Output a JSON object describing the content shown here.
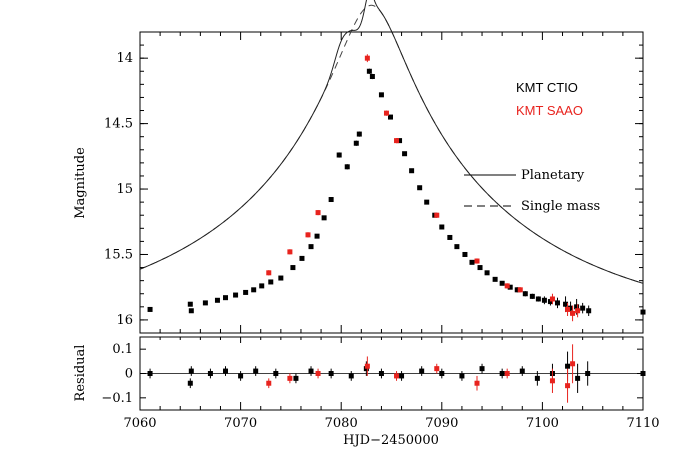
{
  "chart_data": {
    "type": "scatter",
    "xlabel": "HJD−2450000",
    "xlim": [
      7060,
      7110
    ],
    "x_ticks": [
      7060,
      7070,
      7080,
      7090,
      7100,
      7110
    ],
    "x_tick_labels": [
      "7060",
      "7070",
      "7080",
      "7090",
      "7100",
      "7110"
    ],
    "main_panel": {
      "ylabel": "Magnitude",
      "ylim": [
        16.1,
        13.8
      ],
      "y_ticks": [
        14,
        14.5,
        15,
        15.5,
        16
      ],
      "y_tick_labels": [
        "14",
        "14.5",
        "15",
        "15.5",
        "16"
      ]
    },
    "residual_panel": {
      "ylabel": "Residual",
      "ylim": [
        -0.15,
        0.15
      ],
      "y_ticks": [
        0.1,
        0,
        -0.1
      ],
      "y_tick_labels": [
        "0.1",
        "0",
        "−0.1"
      ]
    },
    "legend": {
      "datasets": [
        {
          "name": "KMT CTIO",
          "color": "#000000"
        },
        {
          "name": "KMT SAAO",
          "color": "#e8231e"
        }
      ],
      "models": [
        {
          "name": "Planetary",
          "style": "solid"
        },
        {
          "name": "Single mass",
          "style": "dashed"
        }
      ]
    },
    "model_params": {
      "t0": 7083.0,
      "u0": 0.1,
      "tE": 30.0,
      "baseline_mag": 16.1
    },
    "series": [
      {
        "name": "KMT CTIO",
        "color": "#000000",
        "points": [
          [
            7061.0,
            15.92,
            0.01
          ],
          [
            7065.0,
            15.88,
            0.01
          ],
          [
            7065.1,
            15.93,
            0.01
          ],
          [
            7066.5,
            15.87,
            0.01
          ],
          [
            7067.7,
            15.85,
            0.01
          ],
          [
            7068.5,
            15.83,
            0.01
          ],
          [
            7069.5,
            15.81,
            0.01
          ],
          [
            7070.5,
            15.79,
            0.01
          ],
          [
            7071.3,
            15.77,
            0.01
          ],
          [
            7072.1,
            15.74,
            0.01
          ],
          [
            7073.0,
            15.71,
            0.01
          ],
          [
            7074.0,
            15.68,
            0.01
          ],
          [
            7075.2,
            15.6,
            0.01
          ],
          [
            7076.1,
            15.53,
            0.01
          ],
          [
            7077.0,
            15.44,
            0.01
          ],
          [
            7077.6,
            15.36,
            0.01
          ],
          [
            7078.3,
            15.22,
            0.01
          ],
          [
            7079.0,
            15.08,
            0.01
          ],
          [
            7079.8,
            14.74,
            0.02
          ],
          [
            7080.6,
            14.83,
            0.02
          ],
          [
            7081.5,
            14.65,
            0.02
          ],
          [
            7081.8,
            14.58,
            0.02
          ],
          [
            7082.8,
            14.1,
            0.02
          ],
          [
            7083.1,
            14.14,
            0.02
          ],
          [
            7084.0,
            14.28,
            0.01
          ],
          [
            7084.9,
            14.45,
            0.01
          ],
          [
            7085.8,
            14.63,
            0.01
          ],
          [
            7086.3,
            14.73,
            0.01
          ],
          [
            7087.0,
            14.86,
            0.01
          ],
          [
            7087.8,
            14.99,
            0.01
          ],
          [
            7088.5,
            15.1,
            0.01
          ],
          [
            7089.3,
            15.2,
            0.01
          ],
          [
            7090.0,
            15.29,
            0.01
          ],
          [
            7090.8,
            15.37,
            0.01
          ],
          [
            7091.5,
            15.44,
            0.01
          ],
          [
            7092.3,
            15.5,
            0.01
          ],
          [
            7093.0,
            15.56,
            0.01
          ],
          [
            7093.8,
            15.6,
            0.01
          ],
          [
            7094.5,
            15.64,
            0.01
          ],
          [
            7095.3,
            15.69,
            0.01
          ],
          [
            7096.0,
            15.72,
            0.01
          ],
          [
            7096.8,
            15.75,
            0.01
          ],
          [
            7097.5,
            15.77,
            0.02
          ],
          [
            7098.3,
            15.8,
            0.02
          ],
          [
            7099.0,
            15.82,
            0.02
          ],
          [
            7099.6,
            15.84,
            0.02
          ],
          [
            7100.2,
            15.85,
            0.03
          ],
          [
            7100.8,
            15.86,
            0.03
          ],
          [
            7101.5,
            15.87,
            0.04
          ],
          [
            7102.3,
            15.88,
            0.06
          ],
          [
            7102.8,
            15.91,
            0.05
          ],
          [
            7103.4,
            15.9,
            0.06
          ],
          [
            7104.0,
            15.91,
            0.04
          ],
          [
            7104.6,
            15.93,
            0.04
          ],
          [
            7110.0,
            15.94,
            0.03
          ]
        ]
      },
      {
        "name": "KMT SAAO",
        "color": "#e8231e",
        "points": [
          [
            7072.8,
            15.64,
            0.02
          ],
          [
            7074.9,
            15.48,
            0.02
          ],
          [
            7076.7,
            15.35,
            0.02
          ],
          [
            7077.7,
            15.18,
            0.02
          ],
          [
            7082.6,
            14.0,
            0.03
          ],
          [
            7084.5,
            14.42,
            0.02
          ],
          [
            7085.5,
            14.63,
            0.02
          ],
          [
            7089.5,
            15.2,
            0.02
          ],
          [
            7093.5,
            15.55,
            0.02
          ],
          [
            7096.5,
            15.74,
            0.02
          ],
          [
            7097.8,
            15.77,
            0.02
          ],
          [
            7101.0,
            15.84,
            0.04
          ],
          [
            7102.5,
            15.92,
            0.05
          ],
          [
            7103.0,
            15.95,
            0.06
          ],
          [
            7103.5,
            15.93,
            0.05
          ]
        ]
      }
    ],
    "residuals": [
      {
        "name": "KMT CTIO",
        "color": "#000000",
        "points": [
          [
            7061.0,
            0.0,
            0.02
          ],
          [
            7065.0,
            -0.04,
            0.02
          ],
          [
            7065.1,
            0.01,
            0.02
          ],
          [
            7067.0,
            0.0,
            0.02
          ],
          [
            7068.5,
            0.01,
            0.02
          ],
          [
            7070.0,
            -0.01,
            0.02
          ],
          [
            7071.5,
            0.01,
            0.02
          ],
          [
            7073.5,
            0.0,
            0.02
          ],
          [
            7075.5,
            -0.02,
            0.02
          ],
          [
            7077.0,
            0.01,
            0.02
          ],
          [
            7079.0,
            0.0,
            0.02
          ],
          [
            7081.0,
            -0.01,
            0.02
          ],
          [
            7082.5,
            0.02,
            0.03
          ],
          [
            7084.0,
            0.0,
            0.02
          ],
          [
            7086.0,
            -0.01,
            0.02
          ],
          [
            7088.0,
            0.01,
            0.02
          ],
          [
            7090.0,
            0.0,
            0.02
          ],
          [
            7092.0,
            -0.01,
            0.02
          ],
          [
            7094.0,
            0.02,
            0.02
          ],
          [
            7096.0,
            0.0,
            0.02
          ],
          [
            7098.0,
            0.01,
            0.02
          ],
          [
            7099.5,
            -0.02,
            0.03
          ],
          [
            7101.0,
            0.0,
            0.04
          ],
          [
            7102.5,
            0.03,
            0.06
          ],
          [
            7103.5,
            -0.02,
            0.06
          ],
          [
            7104.5,
            0.0,
            0.05
          ],
          [
            7110.0,
            0.0,
            0.03
          ]
        ]
      },
      {
        "name": "KMT SAAO",
        "color": "#e8231e",
        "points": [
          [
            7072.8,
            -0.04,
            0.02
          ],
          [
            7074.9,
            -0.02,
            0.02
          ],
          [
            7077.7,
            0.0,
            0.02
          ],
          [
            7082.6,
            0.03,
            0.04
          ],
          [
            7085.5,
            -0.01,
            0.02
          ],
          [
            7089.5,
            0.02,
            0.02
          ],
          [
            7093.5,
            -0.04,
            0.03
          ],
          [
            7096.5,
            0.0,
            0.02
          ],
          [
            7101.0,
            -0.03,
            0.05
          ],
          [
            7102.5,
            -0.05,
            0.07
          ],
          [
            7103.0,
            0.04,
            0.08
          ]
        ]
      }
    ]
  }
}
